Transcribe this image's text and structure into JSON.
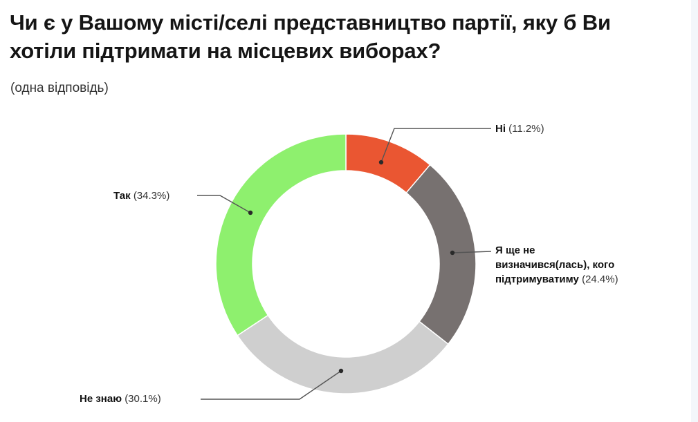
{
  "title": "Чи є у Вашому місті/селі представництво партії, яку б Ви хотіли підтримати на місцевих виборах?",
  "subtitle": "(одна відповідь)",
  "labels": {
    "no": {
      "name": "Ні",
      "pct": "(11.2%)"
    },
    "undecided": {
      "line1": "Я ще не",
      "line2": "визначився(лась), кого",
      "line3": "підтримуватиму",
      "pct": "(24.4%)"
    },
    "dont_know": {
      "name": "Не знаю",
      "pct": "(30.1%)"
    },
    "yes": {
      "name": "Так",
      "pct": "(34.3%)"
    }
  },
  "chart_data": {
    "type": "pie",
    "subtype": "donut",
    "title": "Чи є у Вашому місті/селі представництво партії, яку б Ви хотіли підтримати на місцевих виборах?",
    "subtitle": "(одна відповідь)",
    "categories": [
      "Ні",
      "Я ще не визначився(лась), кого підтримуватиму",
      "Не знаю",
      "Так"
    ],
    "values": [
      11.2,
      24.4,
      30.1,
      34.3
    ],
    "unit": "%",
    "colors": [
      "#ea5632",
      "#777170",
      "#cfcfcf",
      "#8ef06e"
    ],
    "start_angle": "12 o'clock, clockwise",
    "legend": "callout labels"
  }
}
